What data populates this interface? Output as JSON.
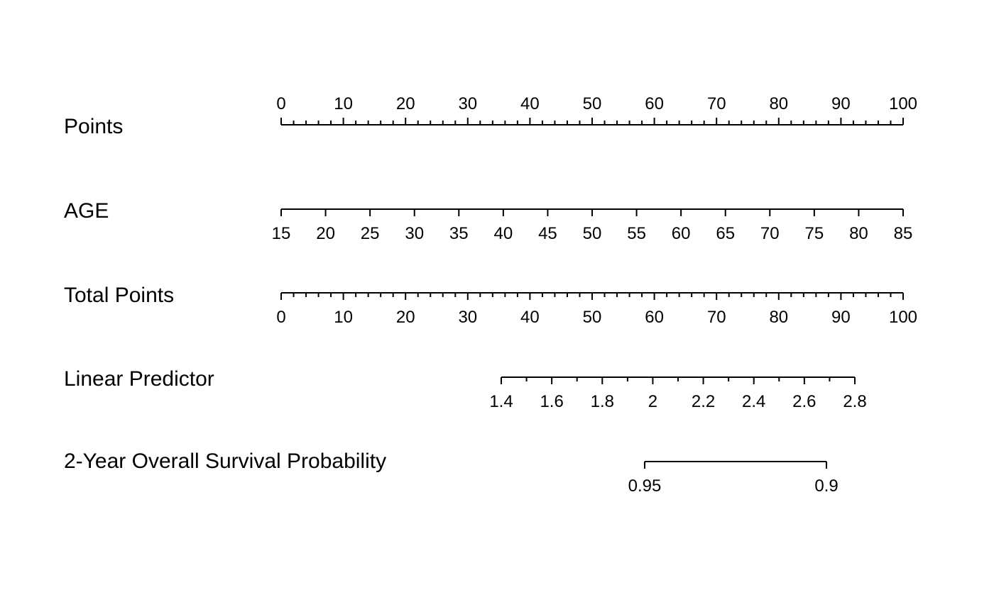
{
  "chart_data": {
    "type": "nomogram",
    "rows": [
      {
        "label": "Points",
        "ticks": [
          0,
          10,
          20,
          30,
          40,
          50,
          60,
          70,
          80,
          90,
          100
        ],
        "minor_step": 2,
        "labels_above": true
      },
      {
        "label": "AGE",
        "ticks": [
          15,
          20,
          25,
          30,
          35,
          40,
          45,
          50,
          55,
          60,
          65,
          70,
          75,
          80,
          85
        ],
        "minor_step": 0,
        "labels_above": false
      },
      {
        "label": "Total Points",
        "ticks": [
          0,
          10,
          20,
          30,
          40,
          50,
          60,
          70,
          80,
          90,
          100
        ],
        "minor_step": 2,
        "labels_above": false
      },
      {
        "label": "Linear Predictor",
        "ticks": [
          "1.4",
          "1.6",
          "1.8",
          "2",
          "2.2",
          "2.4",
          "2.6",
          "2.8"
        ],
        "tick_values": [
          1.4,
          1.6,
          1.8,
          2.0,
          2.2,
          2.4,
          2.6,
          2.8
        ],
        "minor_step": 0.1,
        "labels_above": false
      },
      {
        "label": "2-Year Overall Survival Probability",
        "ticks": [
          "0.95",
          "0.9"
        ],
        "tick_values": [
          0.95,
          0.9
        ],
        "minor_step": 0,
        "labels_above": false
      }
    ]
  }
}
